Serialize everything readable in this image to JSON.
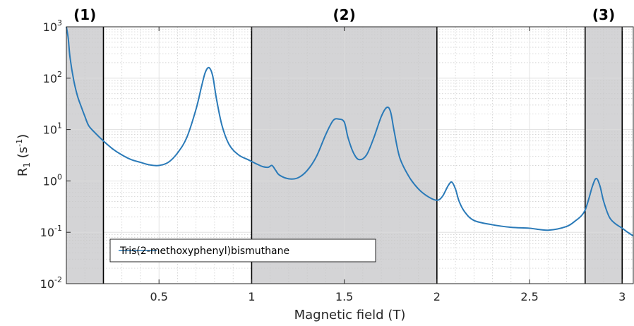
{
  "chart_data": {
    "type": "line",
    "xlabel": "Magnetic field (T)",
    "ylabel": "R",
    "ylabel_sub": "1",
    "ylabel_unit_open": " (s",
    "ylabel_unit_exp": "-1",
    "ylabel_unit_close": ")",
    "xlim": [
      0,
      3.06
    ],
    "ylim": [
      0.01,
      1000
    ],
    "y_scale": "log",
    "grid": true,
    "x_ticks": [
      {
        "value": 0.5,
        "label": "0.5"
      },
      {
        "value": 1,
        "label": "1"
      },
      {
        "value": 1.5,
        "label": "1.5"
      },
      {
        "value": 2,
        "label": "2"
      },
      {
        "value": 2.5,
        "label": "2.5"
      },
      {
        "value": 3,
        "label": "3"
      }
    ],
    "y_ticks": [
      {
        "value": 0.01,
        "base": "10",
        "exp": "-2"
      },
      {
        "value": 0.1,
        "base": "10",
        "exp": "-1"
      },
      {
        "value": 1,
        "base": "10",
        "exp": "0"
      },
      {
        "value": 10,
        "base": "10",
        "exp": "1"
      },
      {
        "value": 100,
        "base": "10",
        "exp": "2"
      },
      {
        "value": 1000,
        "base": "10",
        "exp": "3"
      }
    ],
    "regions": [
      {
        "label": "(1)",
        "x0": 0,
        "x1": 0.2
      },
      {
        "label": "(2)",
        "x0": 1.0,
        "x1": 2.0
      },
      {
        "label": "(3)",
        "x0": 2.8,
        "x1": 3.0
      }
    ],
    "legend": {
      "position": "bottom-left"
    },
    "series": [
      {
        "name": "Tris(2-methoxyphenyl)bismuthane",
        "color": "#2a7ab8",
        "x": [
          0.0,
          0.01,
          0.02,
          0.04,
          0.06,
          0.08,
          0.1,
          0.12,
          0.15,
          0.2,
          0.25,
          0.3,
          0.35,
          0.4,
          0.45,
          0.5,
          0.55,
          0.6,
          0.65,
          0.7,
          0.73,
          0.75,
          0.77,
          0.79,
          0.81,
          0.84,
          0.88,
          0.93,
          0.98,
          1.02,
          1.06,
          1.09,
          1.11,
          1.13,
          1.15,
          1.2,
          1.25,
          1.3,
          1.35,
          1.4,
          1.44,
          1.47,
          1.5,
          1.52,
          1.55,
          1.58,
          1.62,
          1.66,
          1.7,
          1.73,
          1.75,
          1.77,
          1.8,
          1.85,
          1.9,
          1.95,
          2.0,
          2.03,
          2.06,
          2.08,
          2.1,
          2.12,
          2.15,
          2.2,
          2.3,
          2.4,
          2.5,
          2.6,
          2.7,
          2.75,
          2.78,
          2.8,
          2.82,
          2.84,
          2.86,
          2.88,
          2.9,
          2.93,
          2.96,
          3.0,
          3.03,
          3.06
        ],
        "y": [
          1000,
          600,
          250,
          90,
          45,
          28,
          18,
          12,
          9,
          6,
          4.2,
          3.2,
          2.6,
          2.3,
          2.05,
          2.0,
          2.3,
          3.5,
          7,
          25,
          70,
          130,
          160,
          110,
          40,
          12,
          5,
          3.2,
          2.6,
          2.2,
          1.9,
          1.85,
          2.0,
          1.6,
          1.3,
          1.1,
          1.15,
          1.6,
          3,
          8,
          15,
          16,
          14,
          7,
          3.5,
          2.6,
          3.2,
          7,
          18,
          27,
          22,
          9,
          2.8,
          1.2,
          0.7,
          0.5,
          0.42,
          0.5,
          0.8,
          0.95,
          0.7,
          0.4,
          0.25,
          0.17,
          0.14,
          0.125,
          0.12,
          0.11,
          0.13,
          0.17,
          0.21,
          0.27,
          0.45,
          0.8,
          1.12,
          0.8,
          0.4,
          0.2,
          0.15,
          0.12,
          0.1,
          0.085
        ]
      }
    ]
  }
}
